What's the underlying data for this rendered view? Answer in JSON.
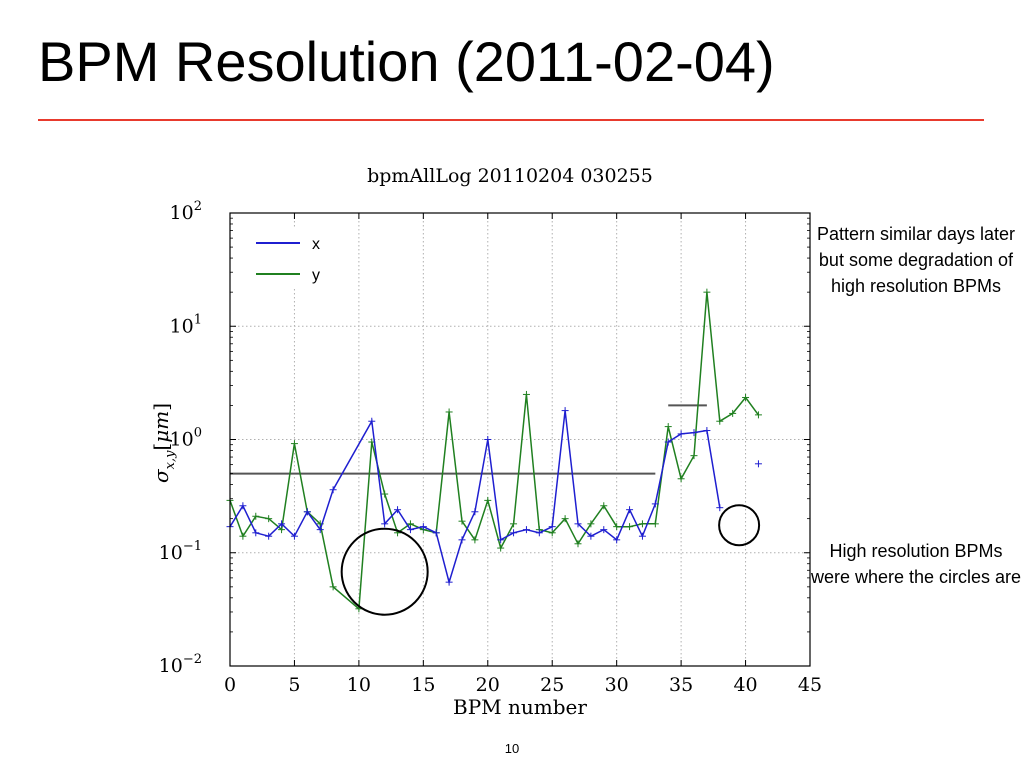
{
  "slide": {
    "title": "BPM Resolution (2011-02-04)",
    "page_number": "10",
    "accent_color": "#e83a2d",
    "note_top": "Pattern similar days later but some degradation of high resolution BPMs",
    "note_bottom": "High resolution BPMs were where the circles are"
  },
  "chart_data": {
    "type": "line",
    "title": "bpmAllLog 20110204 030255",
    "xlabel": "BPM number",
    "ylabel": "σx,y[μm]",
    "xlim": [
      0,
      45
    ],
    "ylim": [
      0.01,
      100
    ],
    "yscale": "log",
    "grid": true,
    "legend_position": "top-left",
    "x_ticks": [
      0,
      5,
      10,
      15,
      20,
      25,
      30,
      35,
      40,
      45
    ],
    "y_ticks": [
      {
        "value": 0.01,
        "base": "10",
        "exp": "−2"
      },
      {
        "value": 0.1,
        "base": "10",
        "exp": "−1"
      },
      {
        "value": 1,
        "base": "10",
        "exp": "0"
      },
      {
        "value": 10,
        "base": "10",
        "exp": "1"
      },
      {
        "value": 100,
        "base": "10",
        "exp": "2"
      }
    ],
    "series": [
      {
        "name": "x",
        "color": "#1f1fd0",
        "points": [
          [
            0,
            0.17
          ],
          [
            1,
            0.26
          ],
          [
            2,
            0.15
          ],
          [
            3,
            0.14
          ],
          [
            4,
            0.18
          ],
          [
            5,
            0.14
          ],
          [
            6,
            0.23
          ],
          [
            7,
            0.16
          ],
          [
            8,
            0.36
          ],
          [
            11,
            1.45
          ],
          [
            12,
            0.18
          ],
          [
            13,
            0.24
          ],
          [
            14,
            0.16
          ],
          [
            15,
            0.17
          ],
          [
            16,
            0.15
          ],
          [
            17,
            0.055
          ],
          [
            18,
            0.13
          ],
          [
            19,
            0.23
          ],
          [
            20,
            1.0
          ],
          [
            21,
            0.13
          ],
          [
            22,
            0.15
          ],
          [
            23,
            0.16
          ],
          [
            24,
            0.15
          ],
          [
            25,
            0.17
          ],
          [
            26,
            1.8
          ],
          [
            27,
            0.18
          ],
          [
            28,
            0.14
          ],
          [
            29,
            0.16
          ],
          [
            30,
            0.13
          ],
          [
            31,
            0.24
          ],
          [
            32,
            0.14
          ],
          [
            33,
            0.27
          ],
          [
            34,
            0.95
          ],
          [
            35,
            1.12
          ],
          [
            36,
            1.15
          ],
          [
            37,
            1.2
          ],
          [
            38,
            0.25
          ]
        ],
        "isolated_points": [
          [
            41,
            0.61
          ]
        ]
      },
      {
        "name": "y",
        "color": "#208020",
        "points": [
          [
            0,
            0.29
          ],
          [
            1,
            0.14
          ],
          [
            2,
            0.21
          ],
          [
            3,
            0.2
          ],
          [
            4,
            0.16
          ],
          [
            5,
            0.92
          ],
          [
            6,
            0.23
          ],
          [
            7,
            0.18
          ],
          [
            8,
            0.05
          ],
          [
            10,
            0.032
          ],
          [
            11,
            0.95
          ],
          [
            12,
            0.33
          ],
          [
            13,
            0.15
          ],
          [
            14,
            0.18
          ],
          [
            15,
            0.16
          ],
          [
            16,
            0.15
          ],
          [
            17,
            1.75
          ],
          [
            18,
            0.19
          ],
          [
            19,
            0.13
          ],
          [
            20,
            0.29
          ],
          [
            21,
            0.11
          ],
          [
            22,
            0.18
          ],
          [
            23,
            2.5
          ],
          [
            24,
            0.16
          ],
          [
            25,
            0.15
          ],
          [
            26,
            0.2
          ],
          [
            27,
            0.12
          ],
          [
            28,
            0.18
          ],
          [
            29,
            0.26
          ],
          [
            30,
            0.17
          ],
          [
            31,
            0.17
          ],
          [
            32,
            0.18
          ],
          [
            33,
            0.18
          ],
          [
            34,
            1.3
          ],
          [
            35,
            0.45
          ],
          [
            36,
            0.72
          ],
          [
            37,
            20
          ],
          [
            38,
            1.45
          ],
          [
            39,
            1.7
          ],
          [
            40,
            2.35
          ],
          [
            41,
            1.65
          ]
        ]
      }
    ],
    "reference_lines": [
      {
        "x": [
          0,
          33
        ],
        "y": 0.5,
        "color": "#555555"
      },
      {
        "x": [
          34,
          37
        ],
        "y": 2.0,
        "color": "#555555"
      }
    ],
    "annotations": [
      {
        "type": "circle",
        "cx": 12,
        "cy": 0.068,
        "color": "#000000"
      },
      {
        "type": "circle",
        "cx": 39.5,
        "cy": 0.175,
        "color": "#000000"
      }
    ]
  }
}
